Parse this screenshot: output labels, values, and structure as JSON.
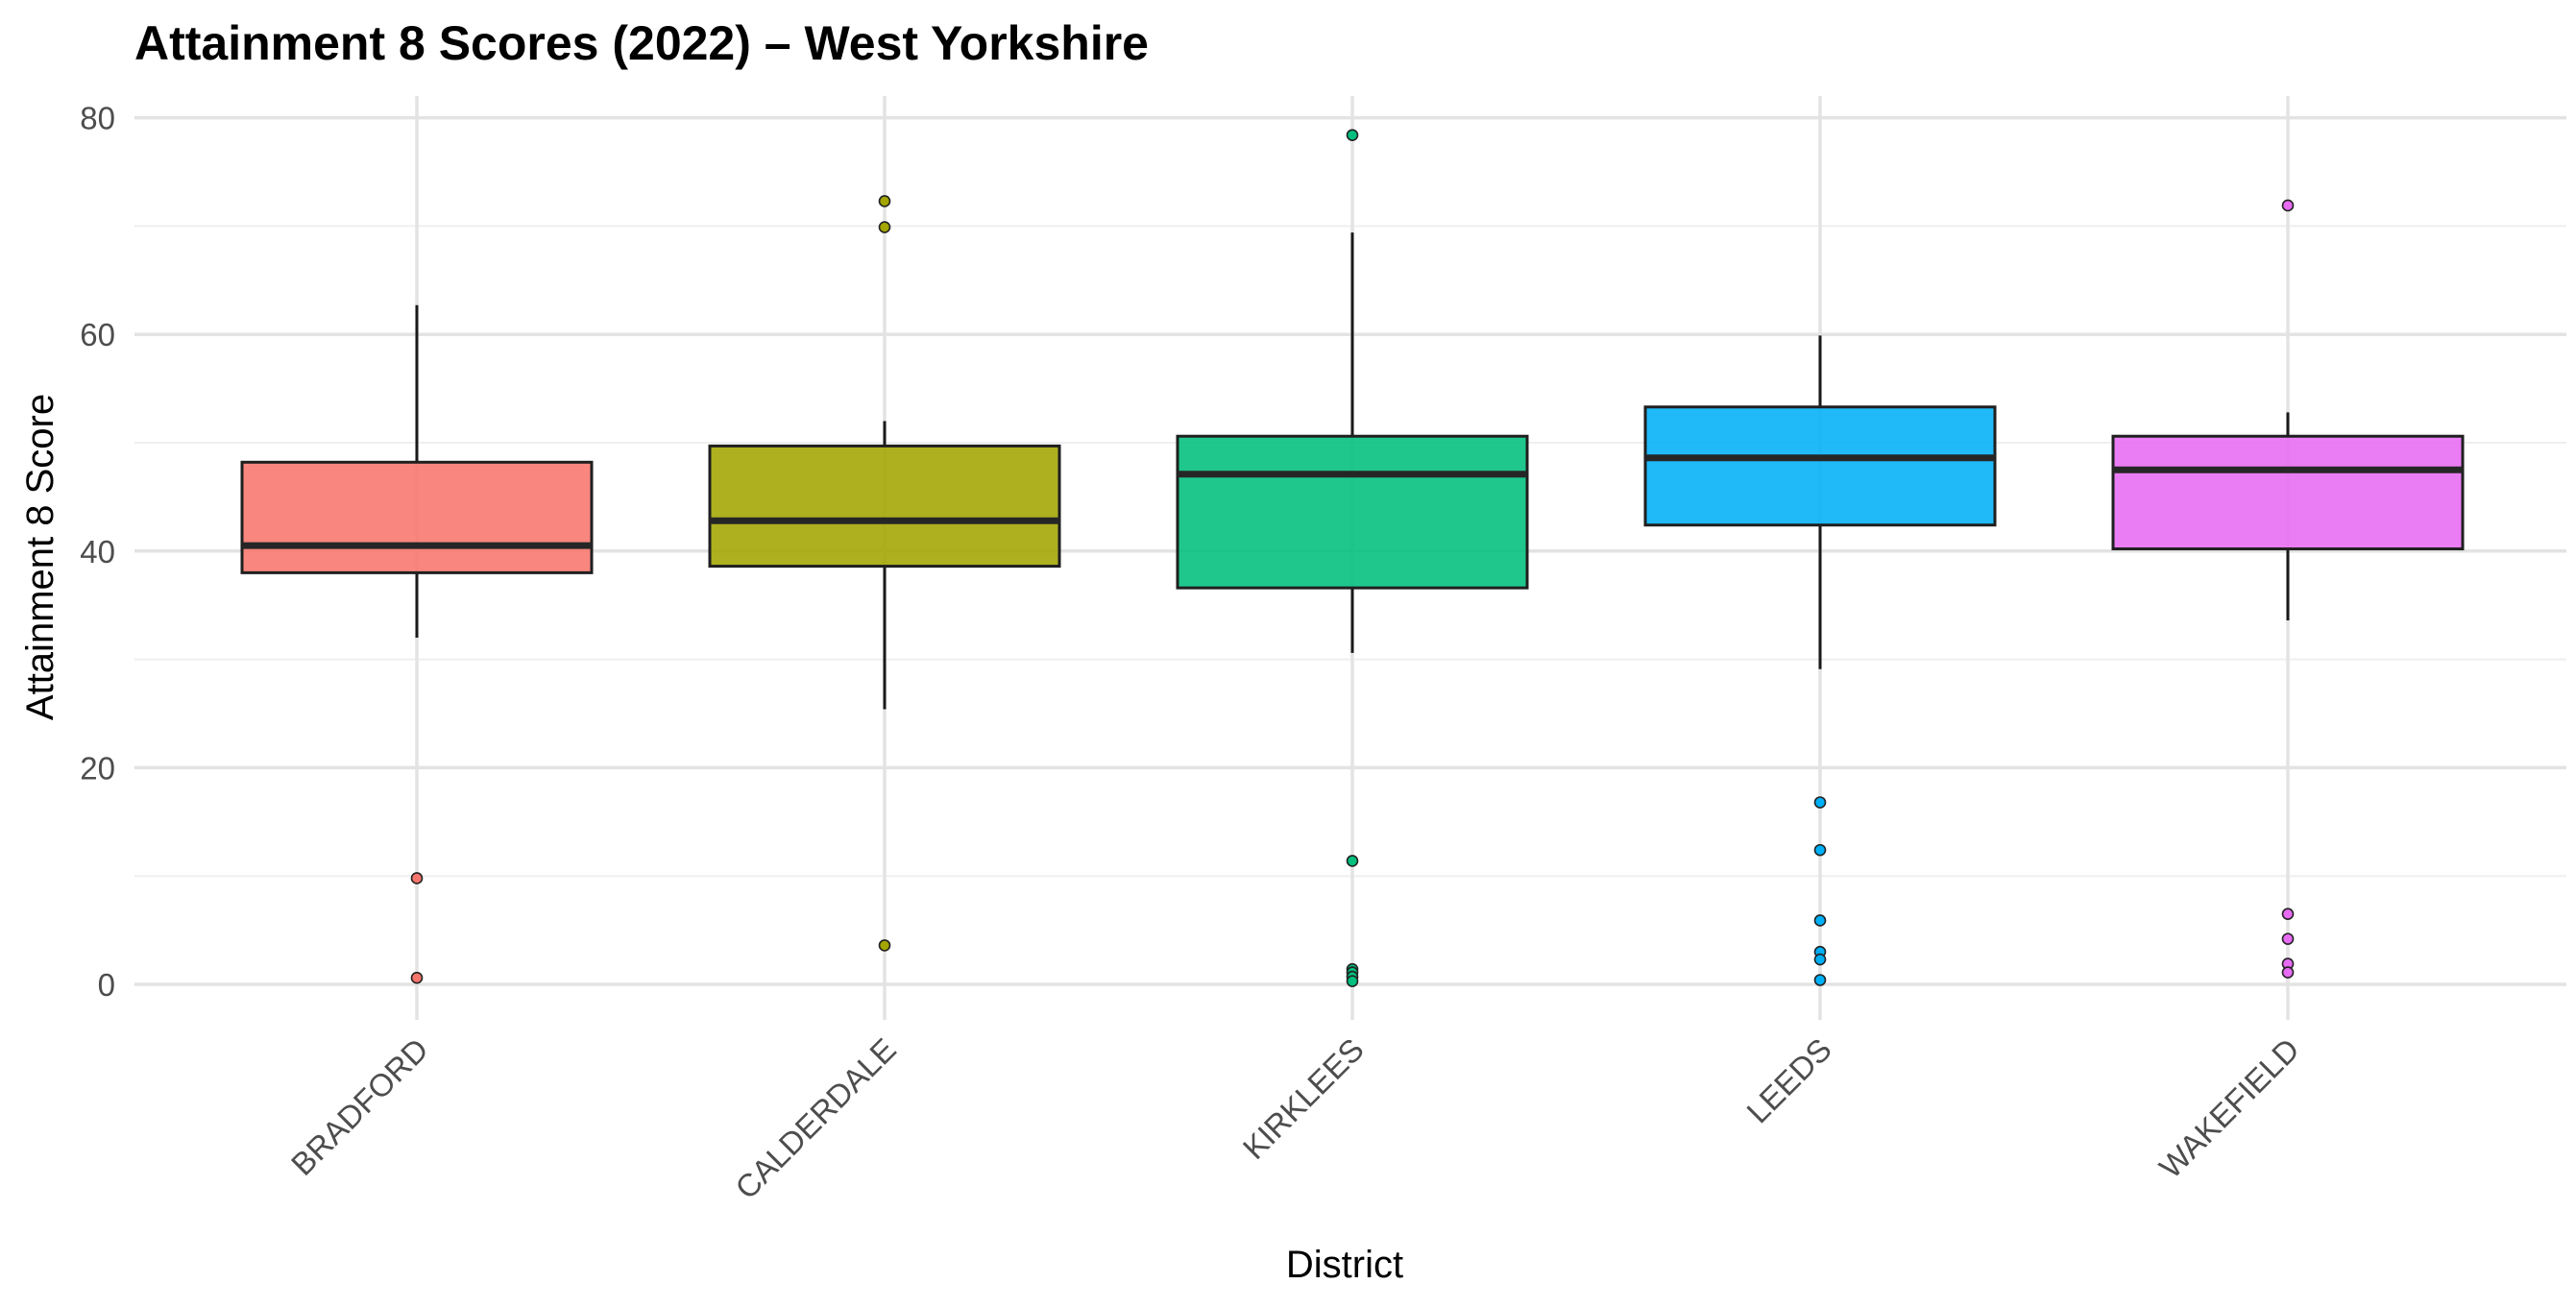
{
  "chart_data": {
    "type": "boxplot",
    "title": "Attainment 8 Scores (2022) – West Yorkshire",
    "xlabel": "District",
    "ylabel": "Attainment 8 Score",
    "ylim": [
      -2.5,
      82.5
    ],
    "yticks": [
      0,
      20,
      40,
      60,
      80
    ],
    "y_minor_ticks": [
      10,
      30,
      50,
      70
    ],
    "grid": true,
    "legend": "none",
    "categories": [
      "BRADFORD",
      "CALDERDALE",
      "KIRKLEES",
      "LEEDS",
      "WAKEFIELD"
    ],
    "series": [
      {
        "category": "BRADFORD",
        "color": "#f8766d",
        "whisker_low": 32.0,
        "q1": 38.0,
        "median": 40.5,
        "q3": 48.2,
        "whisker_high": 62.7,
        "outliers": [
          9.8,
          0.6
        ]
      },
      {
        "category": "CALDERDALE",
        "color": "#a3a500",
        "whisker_low": 25.4,
        "q1": 38.6,
        "median": 42.8,
        "q3": 49.7,
        "whisker_high": 52.0,
        "outliers": [
          72.3,
          69.9,
          3.6
        ]
      },
      {
        "category": "KIRKLEES",
        "color": "#00bf7d",
        "whisker_low": 30.6,
        "q1": 36.6,
        "median": 47.1,
        "q3": 50.6,
        "whisker_high": 69.4,
        "outliers": [
          78.4,
          11.4,
          1.4,
          1.1,
          0.7,
          0.3
        ]
      },
      {
        "category": "LEEDS",
        "color": "#00b0f6",
        "whisker_low": 29.1,
        "q1": 42.4,
        "median": 48.6,
        "q3": 53.3,
        "whisker_high": 59.9,
        "outliers": [
          16.8,
          12.4,
          5.9,
          3.0,
          2.3,
          0.4
        ]
      },
      {
        "category": "WAKEFIELD",
        "color": "#e76bf3",
        "whisker_low": 33.6,
        "q1": 40.2,
        "median": 47.5,
        "q3": 50.6,
        "whisker_high": 52.8,
        "outliers": [
          71.9,
          6.5,
          4.2,
          1.9,
          1.1
        ]
      }
    ]
  }
}
